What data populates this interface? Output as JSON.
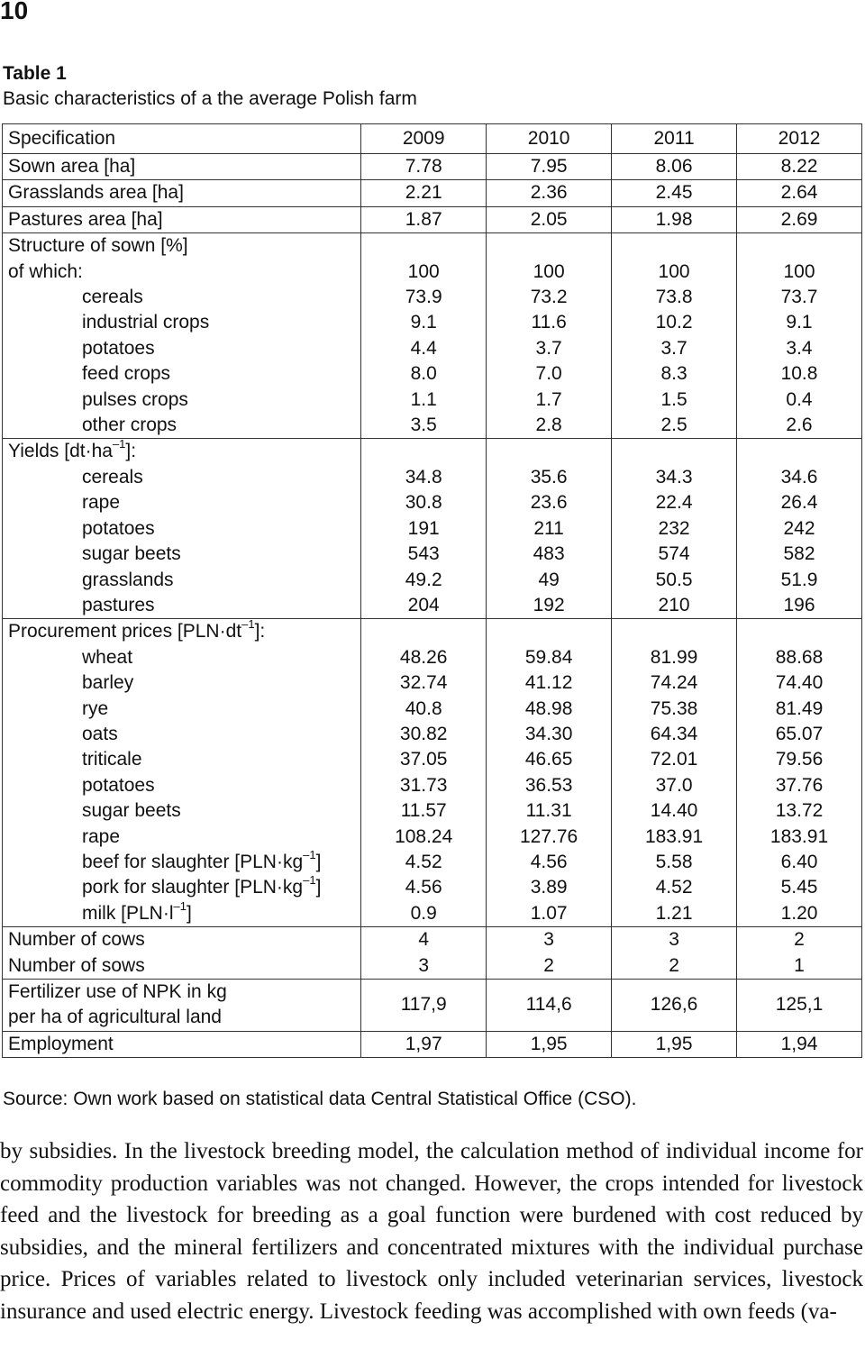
{
  "page_number": "10",
  "table_label": "Table 1",
  "table_title": "Basic characteristics of a the average Polish farm",
  "header": {
    "spec": "Specification",
    "years": [
      "2009",
      "2010",
      "2011",
      "2012"
    ]
  },
  "simple_rows_top": [
    {
      "label": "Sown area [ha]",
      "values": [
        "7.78",
        "7.95",
        "8.06",
        "8.22"
      ]
    },
    {
      "label": "Grasslands area [ha]",
      "values": [
        "2.21",
        "2.36",
        "2.45",
        "2.64"
      ]
    },
    {
      "label": "Pastures area [ha]",
      "values": [
        "1.87",
        "2.05",
        "1.98",
        "2.69"
      ]
    }
  ],
  "structure": {
    "title": "Structure of sown [%]",
    "first_label": "of which:",
    "labels": [
      "cereals",
      "industrial crops",
      "potatoes",
      "feed crops",
      "pulses crops",
      "other crops"
    ],
    "columns": [
      [
        "100",
        "73.9",
        "9.1",
        "4.4",
        "8.0",
        "1.1",
        "3.5"
      ],
      [
        "100",
        "73.2",
        "11.6",
        "3.7",
        "7.0",
        "1.7",
        "2.8"
      ],
      [
        "100",
        "73.8",
        "10.2",
        "3.7",
        "8.3",
        "1.5",
        "2.5"
      ],
      [
        "100",
        "73.7",
        "9.1",
        "3.4",
        "10.8",
        "0.4",
        "2.6"
      ]
    ]
  },
  "yields": {
    "title_pre": "Yields [dt·ha",
    "title_sup": "–1",
    "title_post": "]:",
    "labels": [
      "cereals",
      "rape",
      "potatoes",
      "sugar beets",
      "grasslands",
      "pastures"
    ],
    "columns": [
      [
        "34.8",
        "30.8",
        "191",
        "543",
        "49.2",
        "204"
      ],
      [
        "35.6",
        "23.6",
        "211",
        "483",
        "49",
        "192"
      ],
      [
        "34.3",
        "22.4",
        "232",
        "574",
        "50.5",
        "210"
      ],
      [
        "34.6",
        "26.4",
        "242",
        "582",
        "51.9",
        "196"
      ]
    ]
  },
  "prices": {
    "title_pre": "Procurement prices [PLN·dt",
    "title_sup": "–1",
    "title_post": "]:",
    "labels": [
      "wheat",
      "barley",
      "rye",
      "oats",
      "triticale",
      "potatoes",
      "sugar beets",
      "rape"
    ],
    "labels_sup": [
      {
        "pre": "beef for slaughter [PLN·kg",
        "sup": "–1",
        "post": "]"
      },
      {
        "pre": "pork for slaughter [PLN·kg",
        "sup": "–1",
        "post": "]"
      },
      {
        "pre": "milk [PLN·l",
        "sup": "–1",
        "post": "]"
      }
    ],
    "columns": [
      [
        "48.26",
        "32.74",
        "40.8",
        "30.82",
        "37.05",
        "31.73",
        "11.57",
        "108.24",
        "4.52",
        "4.56",
        "0.9"
      ],
      [
        "59.84",
        "41.12",
        "48.98",
        "34.30",
        "46.65",
        "36.53",
        "11.31",
        "127.76",
        "4.56",
        "3.89",
        "1.07"
      ],
      [
        "81.99",
        "74.24",
        "75.38",
        "64.34",
        "72.01",
        "37.0",
        "14.40",
        "183.91",
        "5.58",
        "4.52",
        "1.21"
      ],
      [
        "88.68",
        "74.40",
        "81.49",
        "65.07",
        "79.56",
        "37.76",
        "13.72",
        "183.91",
        "6.40",
        "5.45",
        "1.20"
      ]
    ]
  },
  "animals": {
    "labels": [
      "Number of cows",
      "Number of sows"
    ],
    "columns": [
      [
        "4",
        "3"
      ],
      [
        "3",
        "2"
      ],
      [
        "3",
        "2"
      ],
      [
        "2",
        "1"
      ]
    ]
  },
  "fertilizer": {
    "label_lines": [
      "Fertilizer use of NPK in kg",
      "per ha of agricultural land"
    ],
    "values": [
      "117,9",
      "114,6",
      "126,6",
      "125,1"
    ]
  },
  "employment": {
    "label": "Employment",
    "values": [
      "1,97",
      "1,95",
      "1,95",
      "1,94"
    ]
  },
  "source": "Source: Own work based on statistical data Central Statistical Office (CSO).",
  "body_text": "by subsidies. In the livestock breeding model, the calculation method of individual income for commodity production variables was not changed. However, the crops intended for livestock feed and the livestock for breeding as a goal function were burdened with cost reduced by subsidies, and the mineral fertilizers and concentrated mixtures with the individual purchase price. Prices of variables related to livestock only included veterinarian services, livestock insurance and used electric energy. Livestock feeding was accomplished with own feeds (va-"
}
